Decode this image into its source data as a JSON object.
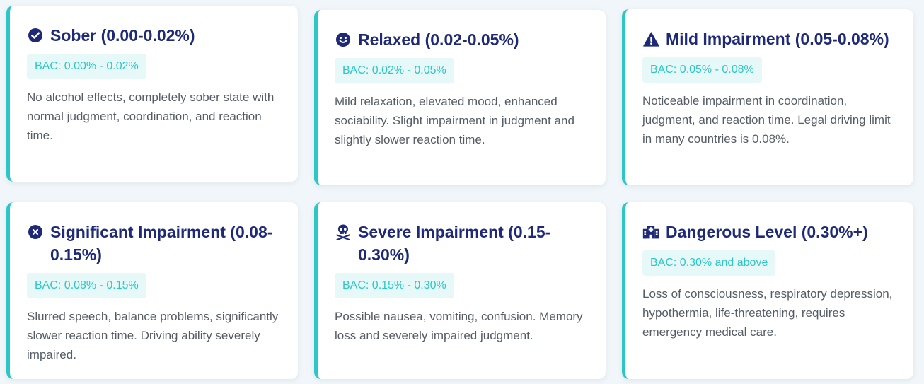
{
  "cards": [
    {
      "icon": "check-circle-icon",
      "title": "Sober (0.00-0.02%)",
      "bac": "BAC: 0.00% - 0.02%",
      "description": "No alcohol effects, completely sober state with normal judgment, coordination, and reaction time."
    },
    {
      "icon": "smile-icon",
      "title": "Relaxed (0.02-0.05%)",
      "bac": "BAC: 0.02% - 0.05%",
      "description": "Mild relaxation, elevated mood, enhanced sociability. Slight impairment in judgment and slightly slower reaction time."
    },
    {
      "icon": "warning-icon",
      "title": "Mild Impairment (0.05-0.08%)",
      "bac": "BAC: 0.05% - 0.08%",
      "description": "Noticeable impairment in coordination, judgment, and reaction time. Legal driving limit in many countries is 0.08%."
    },
    {
      "icon": "x-circle-icon",
      "title": "Significant Impairment (0.08-0.15%)",
      "bac": "BAC: 0.08% - 0.15%",
      "description": "Slurred speech, balance problems, significantly slower reaction time. Driving ability severely impaired."
    },
    {
      "icon": "skull-crossbones-icon",
      "title": "Severe Impairment (0.15-0.30%)",
      "bac": "BAC: 0.15% - 0.30%",
      "description": "Possible nausea, vomiting, confusion. Memory loss and severely impaired judgment."
    },
    {
      "icon": "hospital-icon",
      "title": "Dangerous Level (0.30%+)",
      "bac": "BAC: 0.30% and above",
      "description": "Loss of consciousness, respiratory depression, hypothermia, life-threatening, requires emergency medical care."
    }
  ],
  "colors": {
    "accent": "#2cc6c6",
    "title": "#1e2a78",
    "badge_bg": "#e6f8f8",
    "text": "#555c66",
    "page_bg": "#f0f6f9"
  }
}
